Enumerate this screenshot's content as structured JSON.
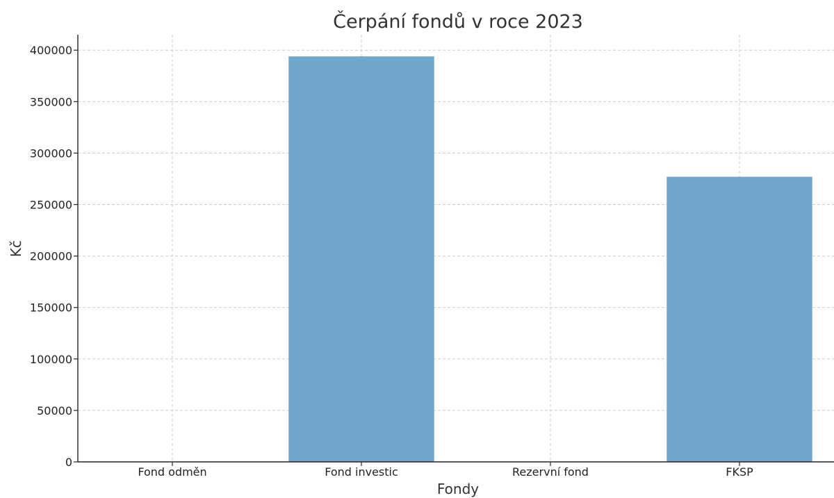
{
  "chart_data": {
    "type": "bar",
    "title": "Čerpání fondů v roce 2023",
    "xlabel": "Fondy",
    "ylabel": "Kč",
    "categories": [
      "Fond odměn",
      "Fond investic",
      "Rezervní fond",
      "FKSP"
    ],
    "values": [
      0,
      394000,
      0,
      277000
    ],
    "ylim": [
      0,
      415000
    ],
    "yticks": [
      0,
      50000,
      100000,
      150000,
      200000,
      250000,
      300000,
      350000,
      400000
    ],
    "ytick_labels": [
      "0",
      "50000",
      "100000",
      "150000",
      "200000",
      "250000",
      "300000",
      "350000",
      "400000"
    ],
    "grid": true,
    "bar_color": "#71a7ce"
  }
}
